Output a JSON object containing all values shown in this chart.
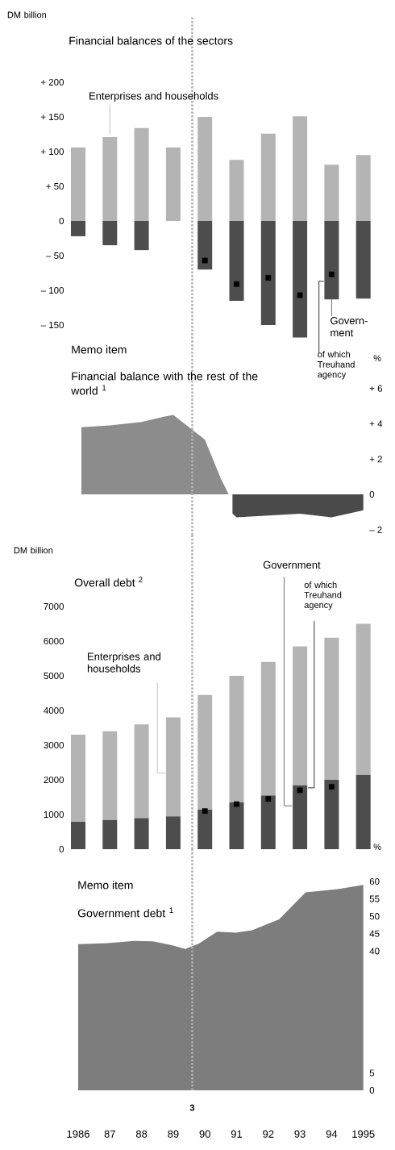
{
  "chart_data": [
    {
      "type": "bar",
      "stacked": true,
      "title": "Financial balances of the sectors",
      "ylabel": "DM billion",
      "x": [
        1986,
        1987,
        1988,
        1989,
        1990,
        1991,
        1992,
        1993,
        1994,
        1995
      ],
      "xlim": [
        1986,
        1995
      ],
      "ylim": [
        -175,
        200
      ],
      "yticks": [
        {
          "value": 200,
          "label": "+ 200"
        },
        {
          "value": 150,
          "label": "+ 150"
        },
        {
          "value": 100,
          "label": "+ 100"
        },
        {
          "value": 50,
          "label": "+  50"
        },
        0,
        {
          "value": -50,
          "label": "–  50"
        },
        {
          "value": -100,
          "label": "– 100"
        },
        {
          "value": -150,
          "label": "– 150"
        }
      ],
      "series": [
        {
          "name": "Enterprises and households",
          "color": "#b4b4b4",
          "values": [
            106,
            121,
            134,
            106,
            150,
            88,
            126,
            151,
            81,
            95
          ]
        },
        {
          "name": "Govern-ment",
          "color": "#4d4d4d",
          "values": [
            -22,
            -35,
            -42,
            null,
            -70,
            -115,
            -150,
            -168,
            -113,
            -112
          ]
        },
        {
          "name": "of which Treuhand agency",
          "type": "scatter",
          "marker": "square",
          "color": "#000000",
          "values": [
            null,
            null,
            null,
            null,
            -57,
            -91,
            -82,
            -107,
            -77,
            null
          ]
        }
      ],
      "ref_lines": [
        {
          "axis": "x",
          "value": 1989.6,
          "line_style": "dotted",
          "color": "#b0b0b0"
        }
      ],
      "tick_labels": "y"
    },
    {
      "type": "area",
      "title": "Memo item",
      "subtitle": "Financial balance with the rest of the world $^{1}$",
      "y2label": "%",
      "xlim": [
        1986,
        1995
      ],
      "y2lim": [
        -2.3,
        6
      ],
      "y2ticks": [
        {
          "value": 6,
          "label": "+ 6"
        },
        {
          "value": 4,
          "label": "+ 4"
        },
        {
          "value": 2,
          "label": "+ 2"
        },
        0,
        {
          "value": -2,
          "label": "– 2"
        }
      ],
      "series": [
        {
          "axis": "y2",
          "color": "#8c8c8c",
          "x": [
            1986.1,
            1987,
            1988,
            1988.7,
            1989,
            1989.5,
            1990,
            1990.5,
            1990.75
          ],
          "values": [
            3.8,
            3.9,
            4.1,
            4.4,
            4.5,
            3.8,
            3.1,
            0.9,
            0
          ]
        },
        {
          "axis": "y2",
          "color": "#4a4a4a",
          "x": [
            1990.87,
            1991,
            1992,
            1993,
            1994,
            1995
          ],
          "values": [
            -1.1,
            -1.3,
            -1.2,
            -1.1,
            -1.3,
            -0.9
          ]
        }
      ],
      "ref_lines": [
        {
          "axis": "x",
          "value": 1989.6,
          "line_style": "dotted",
          "color": "#b0b0b0"
        }
      ],
      "tick_labels": "y"
    },
    {
      "type": "bar",
      "stacked": true,
      "title": "Overall debt $^{2}$",
      "ylabel": "DM billion",
      "x": [
        1986,
        1987,
        1988,
        1989,
        1990,
        1991,
        1992,
        1993,
        1994,
        1995
      ],
      "xlim": [
        1986,
        1995
      ],
      "ylim": [
        0,
        7000
      ],
      "yticks": [
        0,
        1000,
        2000,
        3000,
        4000,
        5000,
        6000,
        7000
      ],
      "series": [
        {
          "name": "Government",
          "color": "#4d4d4d",
          "values": [
            800,
            850,
            900,
            950,
            1150,
            1350,
            1550,
            1850,
            2000,
            2150
          ]
        },
        {
          "name": "Enterprises and households",
          "color": "#b4b4b4",
          "values": [
            2500,
            2550,
            2700,
            2850,
            3300,
            3650,
            3850,
            4000,
            4100,
            4350
          ]
        },
        {
          "name": "of which Treuhand agency",
          "type": "scatter",
          "marker": "square",
          "color": "#000000",
          "values": [
            null,
            null,
            null,
            null,
            1100,
            1300,
            1450,
            1700,
            1800,
            null
          ]
        }
      ],
      "ref_lines": [
        {
          "axis": "x",
          "value": 1989.6,
          "line_style": "dotted",
          "color": "#b0b0b0"
        }
      ],
      "tick_labels": "y"
    },
    {
      "type": "area",
      "title": "Memo item",
      "subtitle": "Government debt $^{1}$",
      "y2label": "%",
      "xlim": [
        1986,
        1995
      ],
      "xticks": [
        1986,
        {
          "value": 1987,
          "label": "87"
        },
        {
          "value": 1988,
          "label": "88"
        },
        {
          "value": 1989,
          "label": "89"
        },
        {
          "value": 1990,
          "label": "90"
        },
        {
          "value": 1991,
          "label": "91"
        },
        {
          "value": 1992,
          "label": "92"
        },
        {
          "value": 1993,
          "label": "93"
        },
        {
          "value": 1994,
          "label": "94"
        },
        1995
      ],
      "y2lim": [
        0,
        60
      ],
      "y2ticks": [
        0,
        5,
        40,
        45,
        50,
        55,
        60
      ],
      "series": [
        {
          "axis": "y2",
          "color": "#7d7d7d",
          "x": [
            1986,
            1986.92,
            1987.77,
            1988.36,
            1988.95,
            1989.38,
            1989.8,
            1990.39,
            1990.98,
            1991.49,
            1992.34,
            1993.18,
            1994.2,
            1995
          ],
          "values": [
            42.0,
            42.3,
            42.9,
            42.8,
            41.7,
            40.6,
            42.1,
            45.6,
            45.3,
            46.0,
            49.1,
            56.9,
            57.8,
            59.0
          ]
        }
      ],
      "ref_lines": [
        {
          "axis": "x",
          "value": 1989.6,
          "line_style": "dotted",
          "color": "#b0b0b0"
        }
      ],
      "annotations": [
        "3"
      ]
    }
  ]
}
